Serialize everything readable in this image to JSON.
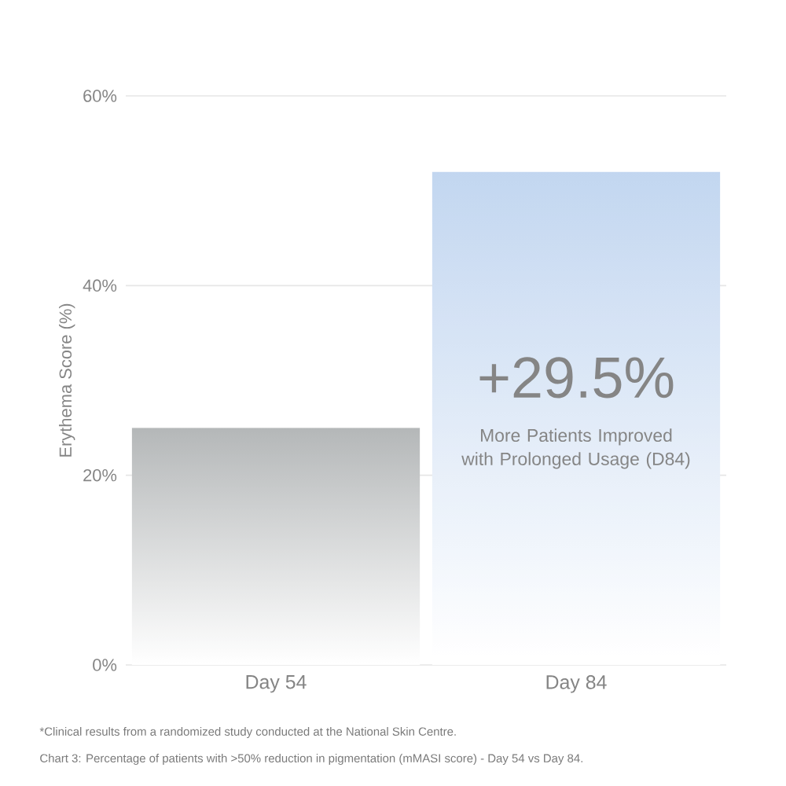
{
  "chart_data": {
    "type": "bar",
    "ylabel": "Erythema Score (%)",
    "categories": [
      "Day 54",
      "Day 84"
    ],
    "values": [
      25,
      52
    ],
    "colors": [
      "#b4b7b8",
      "#c2d6f0"
    ],
    "ylim": [
      0,
      60
    ],
    "yticks": [
      {
        "value": 0,
        "label": "0%"
      },
      {
        "value": 20,
        "label": "20%"
      },
      {
        "value": 40,
        "label": "40%"
      },
      {
        "value": 60,
        "label": "60%"
      }
    ],
    "grid": "y",
    "annotations": [
      "+29.5%",
      "More Patients Improved with Prolonged Usage (D84)",
      "*Clinical results from a randomized study conducted at the National Skin Centre.",
      "Chart 3: Percentage of patients with >50% reduction in pigmentation (mMASI score) - Day 54 vs Day 84."
    ]
  }
}
